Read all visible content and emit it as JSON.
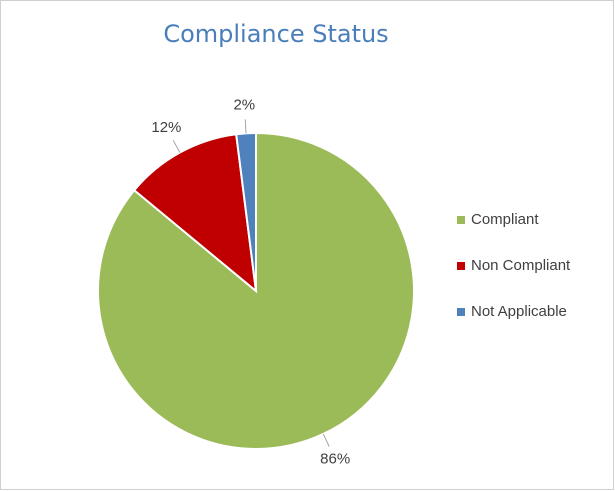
{
  "chart_data": {
    "type": "pie",
    "title": "Compliance Status",
    "categories": [
      "Compliant",
      "Non Compliant",
      "Not Applicable"
    ],
    "values": [
      86,
      12,
      2
    ],
    "value_labels": [
      "86%",
      "12%",
      "2%"
    ],
    "colors": [
      "#9bbb59",
      "#c00000",
      "#4f81bd"
    ],
    "legend": "right"
  }
}
